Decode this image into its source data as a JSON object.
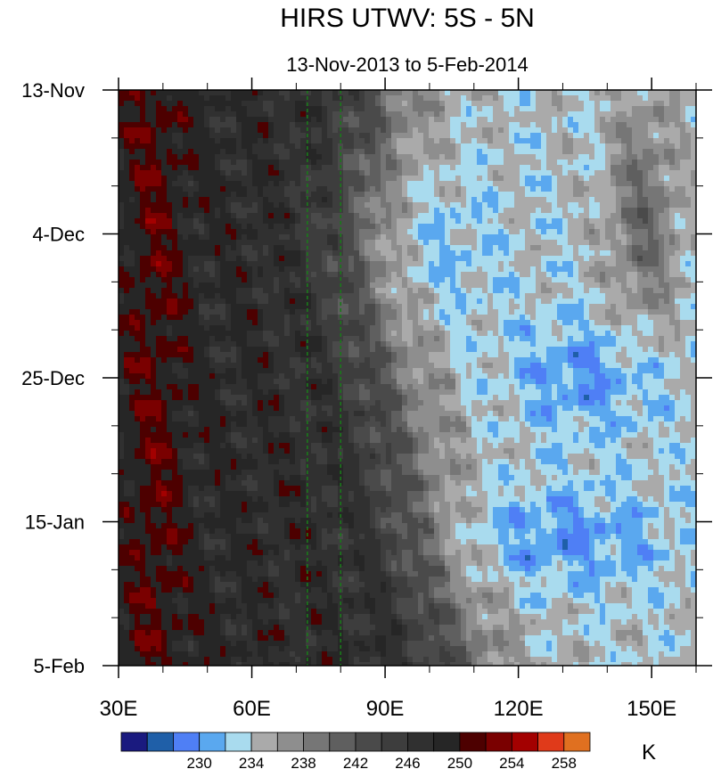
{
  "chart_data": {
    "type": "heatmap",
    "title": "HIRS UTWV: 5S - 5N",
    "subtitle": "13-Nov-2013 to 5-Feb-2014",
    "xlabel": "",
    "ylabel": "",
    "x_range": [
      30,
      160
    ],
    "x_ticks": [
      {
        "value": 30,
        "label": "30E"
      },
      {
        "value": 60,
        "label": "60E"
      },
      {
        "value": 90,
        "label": "90E"
      },
      {
        "value": 120,
        "label": "120E"
      },
      {
        "value": 150,
        "label": "150E"
      }
    ],
    "x_minor_step": 10,
    "y_range": [
      "2013-11-13",
      "2014-02-05"
    ],
    "y_ticks": [
      {
        "value": "2013-11-13",
        "label": "13-Nov"
      },
      {
        "value": "2013-12-04",
        "label": "4-Dec"
      },
      {
        "value": "2013-12-25",
        "label": "25-Dec"
      },
      {
        "value": "2014-01-15",
        "label": "15-Jan"
      },
      {
        "value": "2014-02-05",
        "label": "5-Feb"
      }
    ],
    "y_minor_step_days": 7,
    "reference_lines": [
      {
        "x": 72.5,
        "color": "#1a7a1a",
        "style": "dashed"
      },
      {
        "x": 80,
        "color": "#1a7a1a",
        "style": "dashed"
      }
    ],
    "colorbar": {
      "unit": "K",
      "colors": [
        "#1a1a7f",
        "#1f5fa8",
        "#4f7ff5",
        "#5aa8ef",
        "#a9dbee",
        "#aaaaaa",
        "#8e8e8e",
        "#767676",
        "#5f5f5f",
        "#4a4a4a",
        "#3d3d3d",
        "#303030",
        "#262626",
        "#4d0000",
        "#7a0000",
        "#a30000",
        "#e03a1a",
        "#e07020"
      ],
      "labels": [
        {
          "boundary": 3,
          "text": "230"
        },
        {
          "boundary": 5,
          "text": "234"
        },
        {
          "boundary": 7,
          "text": "238"
        },
        {
          "boundary": 9,
          "text": "242"
        },
        {
          "boundary": 11,
          "text": "246"
        },
        {
          "boundary": 13,
          "text": "250"
        },
        {
          "boundary": 15,
          "text": "254"
        },
        {
          "boundary": 17,
          "text": "258"
        }
      ]
    }
  }
}
